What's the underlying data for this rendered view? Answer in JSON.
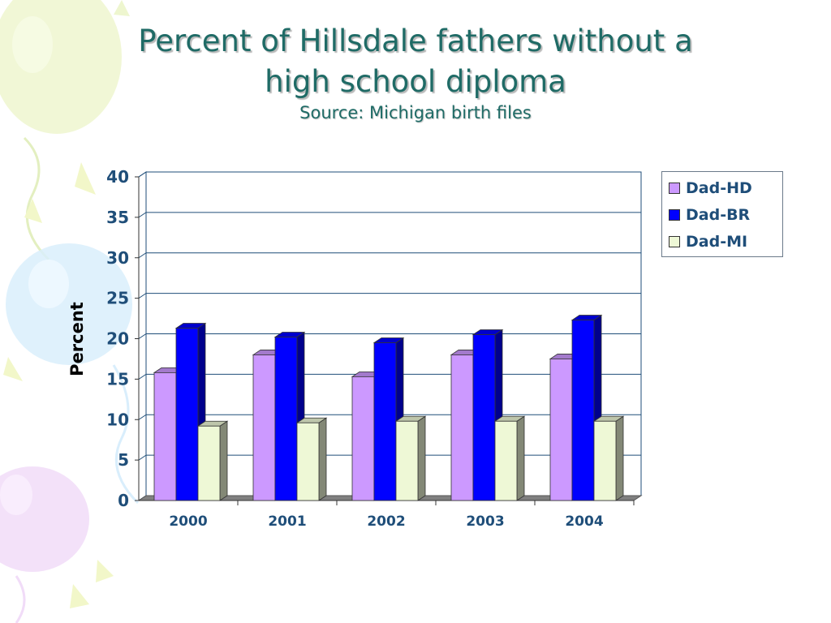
{
  "slide": {
    "title_line1": "Percent of Hillsdale fathers without a",
    "title_line2": "high school diploma",
    "subtitle": "Source: Michigan birth files"
  },
  "colors": {
    "title": "#1f6b66",
    "axis_text": "#1f4e79",
    "grid": "#1f4e79"
  },
  "chart_data": {
    "type": "bar",
    "categories": [
      "2000",
      "2001",
      "2002",
      "2003",
      "2004"
    ],
    "series": [
      {
        "name": "Dad-HD",
        "color": "#cc99ff",
        "values": [
          15.8,
          18.0,
          15.3,
          18.0,
          17.5
        ]
      },
      {
        "name": "Dad-BR",
        "color": "#0000ff",
        "values": [
          21.3,
          20.2,
          19.5,
          20.5,
          22.3
        ]
      },
      {
        "name": "Dad-MI",
        "color": "#eef8d6",
        "values": [
          9.2,
          9.6,
          9.8,
          9.8,
          9.8
        ]
      }
    ],
    "xlabel": "",
    "ylabel": "Percent",
    "ylim": [
      0,
      40
    ],
    "yticks": [
      "0",
      "5",
      "10",
      "15",
      "20",
      "25",
      "30",
      "35",
      "40"
    ],
    "grid": true,
    "legend_position": "top-right",
    "style": "3d-clustered-column"
  }
}
